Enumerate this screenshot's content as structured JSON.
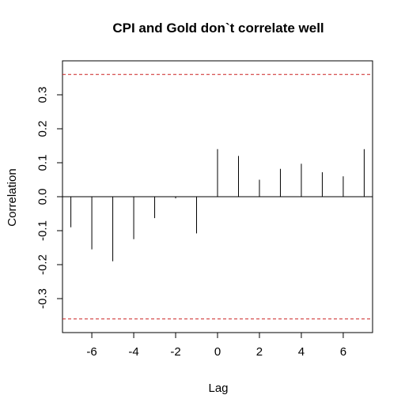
{
  "chart_data": {
    "type": "bar",
    "subtype": "cross-correlation",
    "title": "CPI and Gold don`t correlate well",
    "xlabel": "Lag",
    "ylabel": "Correlation",
    "x": [
      -7,
      -6,
      -5,
      -4,
      -3,
      -2,
      -1,
      0,
      1,
      2,
      3,
      4,
      5,
      6,
      7
    ],
    "values": [
      -0.09,
      -0.155,
      -0.19,
      -0.125,
      -0.063,
      -0.005,
      -0.108,
      0.14,
      0.12,
      0.05,
      0.082,
      0.097,
      0.072,
      0.06,
      0.14
    ],
    "xlim": [
      -7.4,
      7.4
    ],
    "ylim": [
      -0.4,
      0.4
    ],
    "x_ticks": [
      -6,
      -4,
      -2,
      0,
      2,
      4,
      6
    ],
    "x_tick_labels": [
      "-6",
      "-4",
      "-2",
      "0",
      "2",
      "4",
      "6"
    ],
    "y_ticks": [
      -0.3,
      -0.2,
      -0.1,
      0.0,
      0.1,
      0.2,
      0.3
    ],
    "y_tick_labels": [
      "-0.3",
      "-0.2",
      "-0.1",
      "0.0",
      "0.1",
      "0.2",
      "0.3"
    ],
    "confidence_bounds": [
      0.36,
      -0.36
    ],
    "bound_color": "#cc2222",
    "bar_color": "#000000",
    "zero_line": true,
    "grid": false,
    "legend": "none"
  }
}
